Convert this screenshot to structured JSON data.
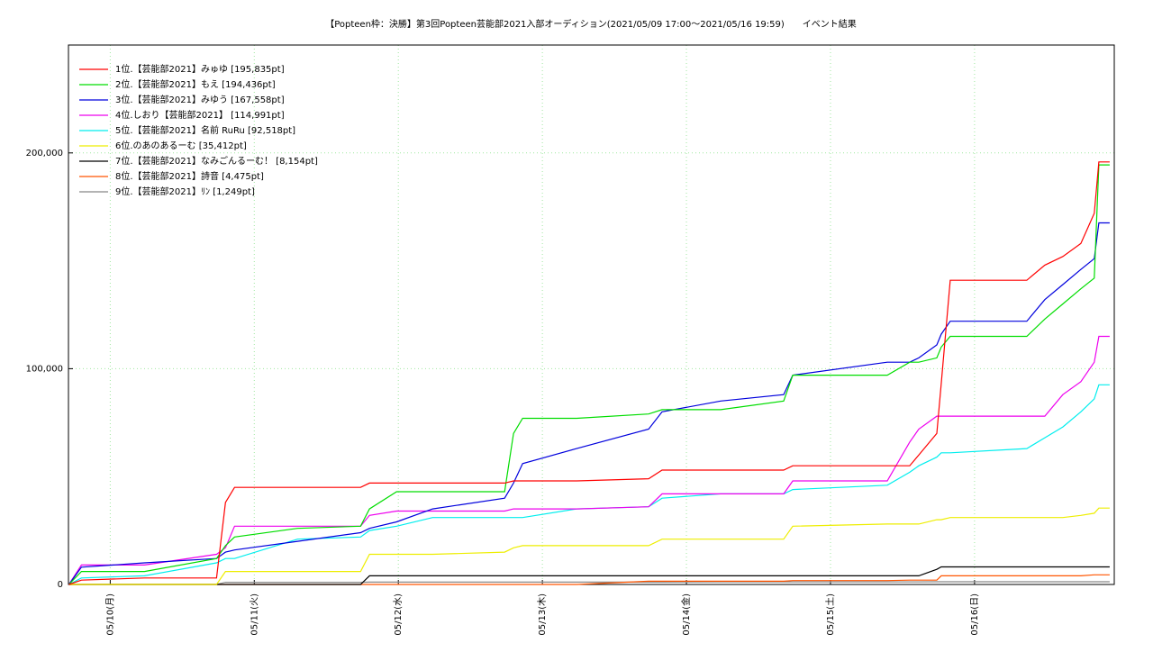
{
  "chart_data": {
    "type": "line",
    "title": "【Popteen枠：決勝】第3回Popteen芸能部2021入部オーディション(2021/05/09 17:00～2021/05/16 19:59)　　イベント結果",
    "x": [
      0.713,
      0.8,
      1.238,
      1.738,
      1.8,
      1.863,
      2.3,
      2.738,
      2.8,
      2.988,
      3.238,
      3.738,
      3.8,
      3.863,
      4.238,
      4.738,
      4.831,
      5.238,
      5.675,
      5.738,
      6.394,
      6.55,
      6.613,
      6.738,
      6.769,
      6.831,
      7.363,
      7.488,
      7.613,
      7.738,
      7.831,
      7.863,
      7.938
    ],
    "xlim": [
      0.71,
      7.97
    ],
    "xticks": [
      {
        "value": 1,
        "label": "05/10(月)"
      },
      {
        "value": 2,
        "label": "05/11(火)"
      },
      {
        "value": 3,
        "label": "05/12(水)"
      },
      {
        "value": 4,
        "label": "05/13(木)"
      },
      {
        "value": 5,
        "label": "05/14(金)"
      },
      {
        "value": 6,
        "label": "05/15(土)"
      },
      {
        "value": 7,
        "label": "05/16(日)"
      }
    ],
    "ylim": [
      0,
      250000
    ],
    "yticks": [
      0,
      {
        "value": 100000,
        "label": "100,000"
      },
      {
        "value": 200000,
        "label": "200,000"
      }
    ],
    "grid": true,
    "legend": "top-left",
    "series": [
      {
        "name": "1位.【芸能部2021】みゅゆ [195,835pt]",
        "color": "#ff0000",
        "values": [
          0,
          2000,
          3000,
          3000,
          38000,
          45000,
          45000,
          45000,
          47000,
          47000,
          47000,
          47000,
          48000,
          48000,
          48000,
          49000,
          53000,
          53000,
          53000,
          55000,
          55000,
          55000,
          60000,
          70000,
          93000,
          141000,
          141000,
          148000,
          152000,
          158000,
          172000,
          195835,
          195835
        ]
      },
      {
        "name": "2位.【芸能部2021】もえ [194,436pt]",
        "color": "#00dd00",
        "values": [
          0,
          6000,
          6000,
          12000,
          18000,
          22000,
          26000,
          27000,
          35000,
          43000,
          43000,
          43000,
          70000,
          77000,
          77000,
          79000,
          81000,
          81000,
          85000,
          97000,
          97000,
          103000,
          103000,
          105000,
          110000,
          115000,
          115000,
          123000,
          130000,
          137000,
          142000,
          194436,
          194436
        ]
      },
      {
        "name": "3位.【芸能部2021】みゆう [167,558pt]",
        "color": "#0000dd",
        "values": [
          0,
          8000,
          10000,
          12000,
          15000,
          16000,
          20000,
          24000,
          26000,
          29000,
          35000,
          40000,
          47000,
          56000,
          63000,
          72000,
          80000,
          85000,
          88000,
          97000,
          103000,
          103000,
          105000,
          111000,
          116000,
          122000,
          122000,
          132000,
          139000,
          146000,
          151000,
          167558,
          167558
        ]
      },
      {
        "name": "4位.しおり【芸能部2021】 [114,991pt]",
        "color": "#ee00ee",
        "values": [
          0,
          9000,
          9000,
          14000,
          17000,
          27000,
          27000,
          27000,
          32000,
          34000,
          34000,
          34000,
          35000,
          35000,
          35000,
          36000,
          42000,
          42000,
          42000,
          48000,
          48000,
          66000,
          72000,
          78000,
          78000,
          78000,
          78000,
          78000,
          88000,
          94000,
          103000,
          114991,
          114991
        ]
      },
      {
        "name": "5位.【芸能部2021】名前 RuRu [92,518pt]",
        "color": "#00eeee",
        "values": [
          0,
          3000,
          4000,
          10000,
          12000,
          12000,
          21000,
          22000,
          25000,
          27000,
          31000,
          31000,
          31000,
          31000,
          35000,
          36000,
          40000,
          42000,
          42000,
          44000,
          46000,
          52000,
          55000,
          59000,
          61000,
          61000,
          63000,
          68000,
          73000,
          80000,
          86000,
          92518,
          92518
        ]
      },
      {
        "name": "6位.のあのあるーむ [35,412pt]",
        "color": "#eeee00",
        "values": [
          0,
          0,
          0,
          0,
          6000,
          6000,
          6000,
          6000,
          14000,
          14000,
          14000,
          15000,
          17000,
          18000,
          18000,
          18000,
          21000,
          21000,
          21000,
          27000,
          28000,
          28000,
          28000,
          30000,
          30000,
          31000,
          31000,
          31000,
          31000,
          32000,
          33000,
          35412,
          35412
        ]
      },
      {
        "name": "7位.【芸能部2021】なみごんるーむ！ [8,154pt]",
        "color": "#000000",
        "values": [
          0,
          0,
          0,
          0,
          0,
          0,
          0,
          0,
          4000,
          4000,
          4000,
          4000,
          4000,
          4000,
          4000,
          4000,
          4000,
          4000,
          4000,
          4000,
          4000,
          4000,
          4000,
          7000,
          8154,
          8154,
          8154,
          8154,
          8154,
          8154,
          8154,
          8154,
          8154
        ]
      },
      {
        "name": "8位.【芸能部2021】詩音 [4,475pt]",
        "color": "#ff5500",
        "values": [
          0,
          0,
          0,
          0,
          0,
          0,
          0,
          0,
          0,
          0,
          0,
          0,
          0,
          0,
          0,
          1500,
          1500,
          1500,
          1500,
          1800,
          1800,
          2000,
          2000,
          2000,
          4000,
          4000,
          4000,
          4000,
          4000,
          4000,
          4475,
          4475,
          4475
        ]
      },
      {
        "name": "9位.【芸能部2021】ﾘﾝ [1,249pt]",
        "color": "#888888",
        "values": [
          0,
          0,
          0,
          0,
          1000,
          1000,
          1000,
          1000,
          1100,
          1100,
          1100,
          1100,
          1100,
          1100,
          1100,
          1100,
          1100,
          1200,
          1200,
          1200,
          1200,
          1200,
          1200,
          1249,
          1249,
          1249,
          1249,
          1249,
          1249,
          1249,
          1249,
          1249,
          1249
        ]
      }
    ]
  }
}
